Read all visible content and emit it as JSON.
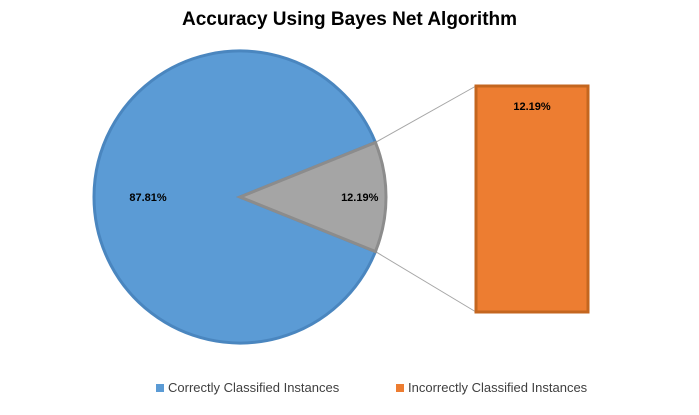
{
  "chart_data": {
    "type": "pie",
    "variant": "pie-of-bar",
    "title": "Accuracy Using Bayes Net Algorithm",
    "slices": [
      {
        "label": "Correctly Classified Instances",
        "value": 87.81,
        "display": "87.81%",
        "color": "#5B9BD5"
      },
      {
        "label": "Incorrectly Classified Instances",
        "value": 12.19,
        "display": "12.19%",
        "color": "#A5A5A5"
      }
    ],
    "secondary_bar": {
      "label": "Incorrectly Classified Instances",
      "value": 12.19,
      "display": "12.19%",
      "color": "#ED7D31"
    },
    "legend": {
      "position": "bottom",
      "items": [
        {
          "label": "Correctly Classified Instances",
          "color": "#5B9BD5"
        },
        {
          "label": "Incorrectly Classified Instances",
          "color": "#ED7D31"
        }
      ]
    }
  }
}
